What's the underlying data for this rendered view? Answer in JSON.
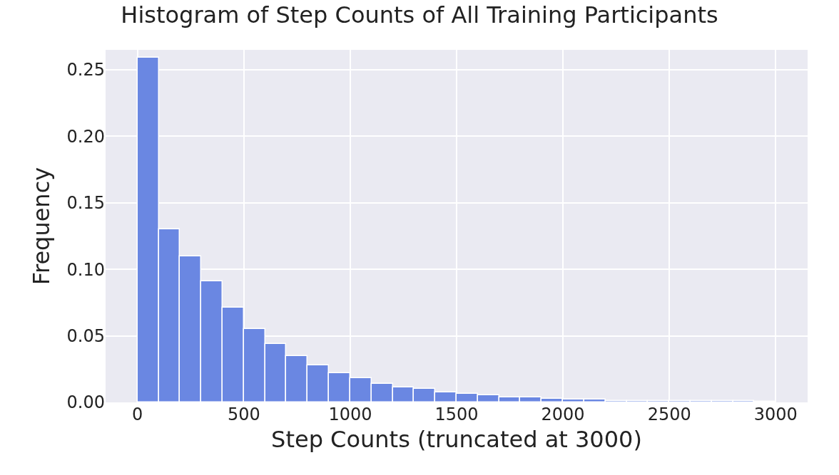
{
  "chart_data": {
    "type": "histogram",
    "title": "Histogram of Step Counts of All Training Participants",
    "xlabel": "Step Counts (truncated at 3000)",
    "ylabel": "Frequency",
    "bins": [
      0,
      100,
      200,
      300,
      400,
      500,
      600,
      700,
      800,
      900,
      1000,
      1100,
      1200,
      1300,
      1400,
      1500,
      1600,
      1700,
      1800,
      1900,
      2000,
      2100,
      2200,
      2300,
      2400,
      2500,
      2600,
      2700,
      2800,
      2900,
      3000
    ],
    "values": [
      0.259,
      0.13,
      0.11,
      0.091,
      0.071,
      0.055,
      0.044,
      0.035,
      0.028,
      0.022,
      0.018,
      0.014,
      0.011,
      0.01,
      0.0073,
      0.0066,
      0.0055,
      0.004,
      0.004,
      0.0028,
      0.0019,
      0.0019,
      0.0013,
      0.0013,
      0.0013,
      0.001,
      0.001,
      0.001,
      0.001,
      0.0004
    ],
    "color": "#6a87e2",
    "xlim": [
      -150,
      3150
    ],
    "ylim": [
      0,
      0.265
    ],
    "xticks": [
      0,
      500,
      1000,
      1500,
      2000,
      2500,
      3000
    ],
    "yticks": [
      {
        "value": 0,
        "label": "0.00"
      },
      {
        "value": 0.05,
        "label": "0.05"
      },
      {
        "value": 0.1,
        "label": "0.10"
      },
      {
        "value": 0.15,
        "label": "0.15"
      },
      {
        "value": 0.2,
        "label": "0.20"
      },
      {
        "value": 0.25,
        "label": "0.25"
      }
    ],
    "grid": true
  }
}
